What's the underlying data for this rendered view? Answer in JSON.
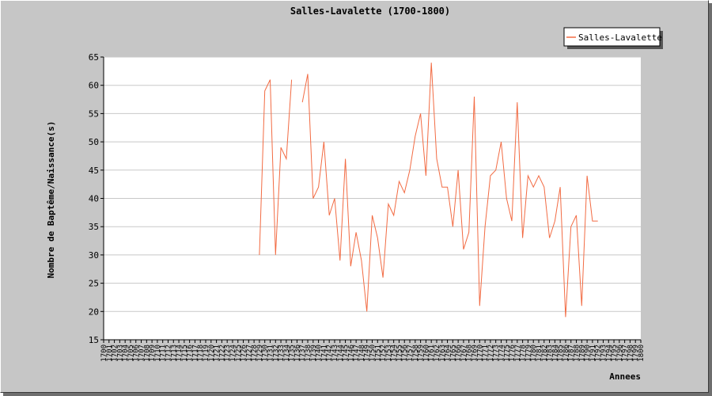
{
  "chart_data": {
    "type": "line",
    "title": "Salles-Lavalette (1700-1800)",
    "xlabel": "Annees",
    "ylabel": "Nombre de Baptême/Naissance(s)",
    "xlim": [
      1700,
      1800
    ],
    "ylim": [
      15,
      65
    ],
    "yticks": [
      15,
      20,
      25,
      30,
      35,
      40,
      45,
      50,
      55,
      60,
      65
    ],
    "xticks": [
      "1700",
      "1701",
      "1702",
      "1703",
      "1704",
      "1705",
      "1706",
      "1707",
      "1708",
      "1709",
      "1710",
      "1711",
      "1712",
      "1713",
      "1714",
      "1715",
      "1716",
      "1717",
      "1718",
      "1719",
      "1720",
      "1721",
      "1722",
      "1723",
      "1724",
      "1725",
      "1726",
      "1727",
      "1728",
      "1729",
      "1730",
      "1731",
      "1732",
      "1733",
      "1734",
      "1735",
      "1736",
      "1737",
      "1738",
      "1739",
      "1740",
      "1741",
      "1742",
      "1743",
      "1744",
      "1745",
      "1746",
      "1747",
      "1748",
      "1749",
      "1750",
      "1751",
      "1752",
      "1753",
      "1754",
      "1755",
      "1756",
      "1757",
      "1758",
      "1759",
      "1760",
      "1761",
      "1762",
      "1763",
      "1764",
      "1765",
      "1766",
      "1767",
      "1768",
      "1769",
      "1770",
      "1771",
      "1772",
      "1773",
      "1774",
      "1775",
      "1776",
      "1777",
      "1778",
      "1779",
      "1780",
      "1781",
      "1782",
      "1783",
      "1784",
      "1785",
      "1786",
      "1787",
      "1788",
      "1789",
      "1790",
      "1791",
      "1792",
      "1793",
      "1794",
      "1795",
      "1796",
      "1797",
      "1798",
      "1799",
      "1800"
    ],
    "grid": true,
    "legend_position": "top-right",
    "series": [
      {
        "name": "Salles-Lavalette",
        "color": "#f26b43",
        "x": [
          1729,
          1730,
          1731,
          1732,
          1733,
          1734,
          1735,
          1736,
          1737,
          1738,
          1739,
          1740,
          1741,
          1742,
          1743,
          1744,
          1745,
          1746,
          1747,
          1748,
          1749,
          1750,
          1751,
          1752,
          1753,
          1754,
          1755,
          1756,
          1757,
          1758,
          1759,
          1760,
          1761,
          1762,
          1763,
          1764,
          1765,
          1766,
          1767,
          1768,
          1769,
          1770,
          1771,
          1772,
          1773,
          1774,
          1775,
          1776,
          1777,
          1778,
          1779,
          1780,
          1781,
          1782,
          1783,
          1784,
          1785,
          1786,
          1787,
          1788,
          1789,
          1790,
          1791,
          1792
        ],
        "y": [
          30,
          59,
          61,
          30,
          49,
          47,
          61,
          null,
          57,
          62,
          40,
          42,
          50,
          37,
          40,
          29,
          47,
          28,
          34,
          29,
          20,
          37,
          33,
          26,
          39,
          37,
          43,
          41,
          45,
          51,
          55,
          44,
          64,
          47,
          42,
          42,
          35,
          45,
          31,
          34,
          58,
          21,
          35,
          44,
          45,
          50,
          40,
          36,
          57,
          33,
          44,
          42,
          44,
          42,
          33,
          36,
          42,
          19,
          35,
          37,
          21,
          44,
          36,
          36
        ]
      }
    ]
  }
}
